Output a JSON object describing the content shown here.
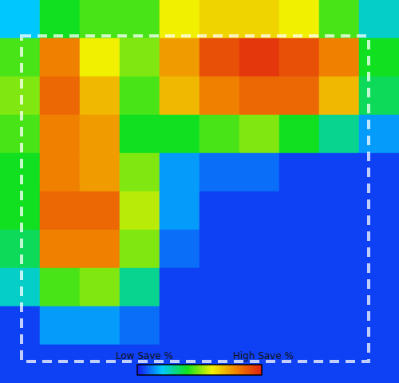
{
  "chart_data": {
    "type": "heatmap",
    "tick_labels": false,
    "cells": [
      [
        20,
        40,
        45,
        45,
        60,
        65,
        65,
        60,
        45,
        25
      ],
      [
        45,
        80,
        60,
        50,
        75,
        90,
        95,
        90,
        80,
        40
      ],
      [
        50,
        85,
        70,
        45,
        70,
        80,
        85,
        85,
        70,
        35
      ],
      [
        45,
        80,
        75,
        40,
        40,
        45,
        50,
        40,
        30,
        15
      ],
      [
        40,
        80,
        75,
        50,
        15,
        10,
        10,
        5,
        5,
        5
      ],
      [
        40,
        85,
        85,
        55,
        15,
        5,
        5,
        5,
        5,
        5
      ],
      [
        35,
        80,
        80,
        50,
        10,
        5,
        5,
        5,
        5,
        5
      ],
      [
        25,
        45,
        50,
        30,
        5,
        5,
        5,
        5,
        5,
        5
      ],
      [
        5,
        15,
        15,
        10,
        5,
        5,
        5,
        5,
        5,
        5
      ],
      [
        5,
        5,
        5,
        5,
        5,
        5,
        5,
        5,
        5,
        5
      ]
    ],
    "colorbar": {
      "range": [
        0,
        100
      ],
      "low_label": "Low Save %",
      "high_label": "High Save %",
      "colors": [
        "#1414f0",
        "#00c8ff",
        "#10e020",
        "#f0f000",
        "#f08000",
        "#e02010"
      ]
    }
  }
}
